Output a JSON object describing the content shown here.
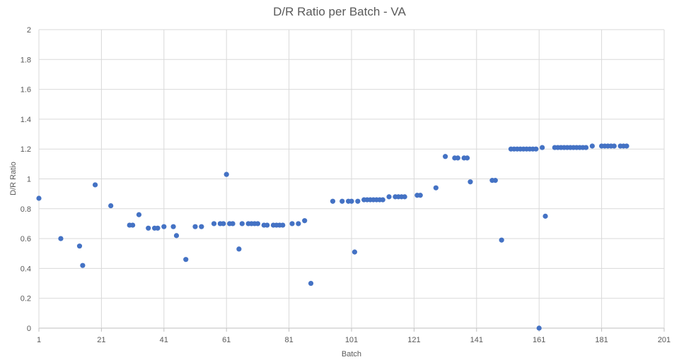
{
  "chart_data": {
    "type": "scatter",
    "title": "D/R Ratio per Batch - VA",
    "xlabel": "Batch",
    "ylabel": "D/R Ratio",
    "xlim": [
      1,
      201
    ],
    "ylim": [
      0,
      2
    ],
    "x_ticks": [
      1,
      21,
      41,
      61,
      81,
      101,
      121,
      141,
      161,
      181,
      201
    ],
    "y_ticks": [
      0,
      0.2,
      0.4,
      0.6,
      0.8,
      1,
      1.2,
      1.4,
      1.6,
      1.8,
      2
    ],
    "y_tick_labels": [
      "0",
      "0.2",
      "0.4",
      "0.6",
      "0.8",
      "1",
      "1.2",
      "1.4",
      "1.6",
      "1.8",
      "2"
    ],
    "grid": true,
    "legend": "none",
    "colors": {
      "points": "#4472c4",
      "grid": "#d9d9d9",
      "text": "#595959"
    },
    "series": [
      {
        "x": [
          1,
          8,
          14,
          15,
          19,
          24,
          30,
          31,
          33,
          36,
          38,
          39,
          41,
          44,
          45,
          48,
          51,
          53,
          57,
          59,
          60,
          61,
          62,
          63,
          65,
          66,
          68,
          69,
          70,
          71,
          73,
          74,
          76,
          77,
          78,
          79,
          82,
          84,
          86,
          88,
          95,
          98,
          100,
          101,
          102,
          103,
          105,
          106,
          107,
          108,
          109,
          110,
          111,
          113,
          115,
          116,
          117,
          118,
          122,
          123,
          128,
          131,
          134,
          135,
          137,
          138,
          139,
          146,
          147,
          149,
          152,
          153,
          154,
          155,
          156,
          157,
          158,
          159,
          160,
          161,
          162,
          163,
          166,
          167,
          168,
          169,
          170,
          171,
          172,
          173,
          174,
          175,
          176,
          178,
          181,
          182,
          183,
          184,
          185,
          187,
          188,
          189
        ],
        "y": [
          0.87,
          0.6,
          0.55,
          0.42,
          0.96,
          0.82,
          0.69,
          0.69,
          0.76,
          0.67,
          0.67,
          0.67,
          0.68,
          0.68,
          0.62,
          0.46,
          0.68,
          0.68,
          0.7,
          0.7,
          0.7,
          1.03,
          0.7,
          0.7,
          0.53,
          0.7,
          0.7,
          0.7,
          0.7,
          0.7,
          0.69,
          0.69,
          0.69,
          0.69,
          0.69,
          0.69,
          0.7,
          0.7,
          0.72,
          0.3,
          0.85,
          0.85,
          0.85,
          0.85,
          0.51,
          0.85,
          0.86,
          0.86,
          0.86,
          0.86,
          0.86,
          0.86,
          0.86,
          0.88,
          0.88,
          0.88,
          0.88,
          0.88,
          0.89,
          0.89,
          0.94,
          1.15,
          1.14,
          1.14,
          1.14,
          1.14,
          0.98,
          0.99,
          0.99,
          0.59,
          1.2,
          1.2,
          1.2,
          1.2,
          1.2,
          1.2,
          1.2,
          1.2,
          1.2,
          0.0,
          1.21,
          0.75,
          1.21,
          1.21,
          1.21,
          1.21,
          1.21,
          1.21,
          1.21,
          1.21,
          1.21,
          1.21,
          1.21,
          1.22,
          1.22,
          1.22,
          1.22,
          1.22,
          1.22,
          1.22,
          1.22,
          1.22
        ]
      }
    ]
  }
}
